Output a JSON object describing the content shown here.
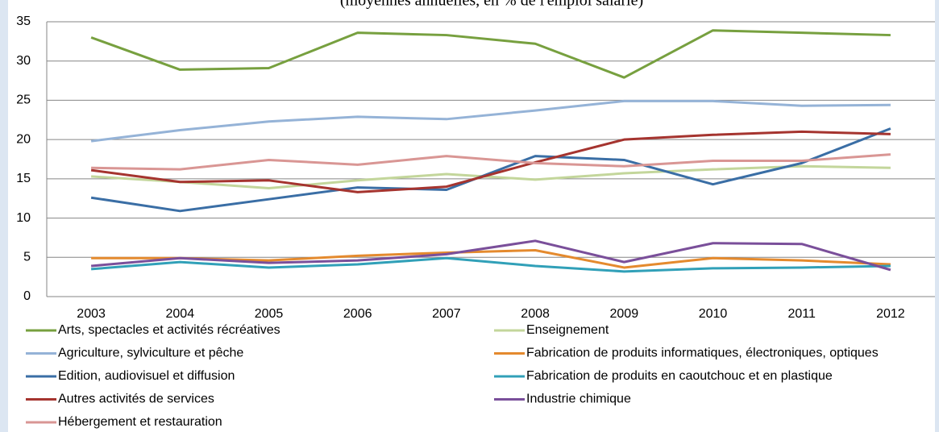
{
  "chart_data": {
    "type": "line",
    "subtitle": "(moyennes annuelles, en % de l'emploi salarié)",
    "categories": [
      "2003",
      "2004",
      "2005",
      "2006",
      "2007",
      "2008",
      "2009",
      "2010",
      "2011",
      "2012"
    ],
    "ylim": [
      0,
      35
    ],
    "yticks": [
      0,
      5,
      10,
      15,
      20,
      25,
      30,
      35
    ],
    "grid": true,
    "series": [
      {
        "name": "Arts, spectacles et activités récréatives",
        "color": "#77a03f",
        "values": [
          33.0,
          28.9,
          29.1,
          33.6,
          33.3,
          32.2,
          27.9,
          33.9,
          33.6,
          33.3
        ]
      },
      {
        "name": "Enseignement",
        "color": "#c3d69b",
        "values": [
          15.3,
          14.6,
          13.8,
          14.8,
          15.6,
          14.9,
          15.7,
          16.2,
          16.6,
          16.4
        ]
      },
      {
        "name": "Agriculture, sylviculture et pêche",
        "color": "#95b3d7",
        "values": [
          19.8,
          21.2,
          22.3,
          22.9,
          22.6,
          23.7,
          24.9,
          24.9,
          24.3,
          24.4
        ]
      },
      {
        "name": "Fabrication de produits informatiques, électroniques, optiques",
        "color": "#e48a2e",
        "values": [
          4.9,
          4.9,
          4.6,
          5.2,
          5.6,
          5.9,
          3.7,
          4.9,
          4.6,
          4.1
        ]
      },
      {
        "name": "Edition, audiovisuel et diffusion",
        "color": "#3a6ea5",
        "values": [
          12.6,
          10.9,
          12.4,
          13.9,
          13.6,
          17.9,
          17.4,
          14.3,
          17.0,
          21.4
        ]
      },
      {
        "name": "Fabrication de produits en caoutchouc et en plastique",
        "color": "#31a0b8",
        "values": [
          3.5,
          4.4,
          3.7,
          4.1,
          4.9,
          3.9,
          3.2,
          3.6,
          3.7,
          3.9
        ]
      },
      {
        "name": "Autres activités de services",
        "color": "#a5342f",
        "values": [
          16.1,
          14.6,
          14.8,
          13.3,
          14.0,
          17.1,
          20.0,
          20.6,
          21.0,
          20.7
        ]
      },
      {
        "name": "Industrie chimique",
        "color": "#7a4f9a",
        "values": [
          3.9,
          4.9,
          4.3,
          4.6,
          5.4,
          7.1,
          4.4,
          6.8,
          6.7,
          3.4
        ]
      },
      {
        "name": "Hébergement et restauration",
        "color": "#d99694",
        "values": [
          16.4,
          16.2,
          17.4,
          16.8,
          17.9,
          17.0,
          16.6,
          17.3,
          17.3,
          18.1
        ]
      }
    ]
  }
}
